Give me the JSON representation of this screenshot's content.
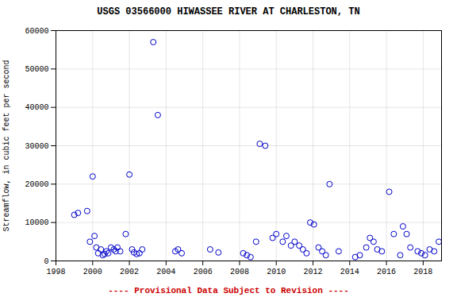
{
  "chart_data": {
    "type": "scatter",
    "title": "USGS 03566000 HIWASSEE RIVER AT CHARLESTON, TN",
    "ylabel": "Streamflow, in cubic feet per second",
    "xlabel": "---- Provisional Data Subject to Revision ----",
    "xlim": [
      1998,
      2019
    ],
    "ylim": [
      0,
      60000
    ],
    "xticks": [
      1998,
      2000,
      2002,
      2004,
      2006,
      2008,
      2010,
      2012,
      2014,
      2016,
      2018
    ],
    "yticks": [
      0,
      10000,
      20000,
      30000,
      40000,
      50000,
      60000
    ],
    "grid": true,
    "color": "#0000CC",
    "marker": "open",
    "x": [
      1999.0,
      1999.2,
      1999.7,
      1999.85,
      2000.0,
      2000.1,
      2000.2,
      2000.3,
      2000.45,
      2000.55,
      2000.65,
      2000.75,
      2000.85,
      2001.0,
      2001.15,
      2001.25,
      2001.35,
      2001.5,
      2001.8,
      2002.0,
      2002.15,
      2002.25,
      2002.4,
      2002.55,
      2002.7,
      2003.3,
      2003.55,
      2004.5,
      2004.65,
      2004.85,
      2006.4,
      2006.85,
      2008.2,
      2008.4,
      2008.6,
      2008.9,
      2009.1,
      2009.4,
      2009.8,
      2010.0,
      2010.35,
      2010.55,
      2010.8,
      2011.0,
      2011.25,
      2011.45,
      2011.65,
      2011.85,
      2012.05,
      2012.3,
      2012.5,
      2012.7,
      2012.9,
      2013.4,
      2014.3,
      2014.55,
      2014.9,
      2015.1,
      2015.3,
      2015.5,
      2015.75,
      2016.15,
      2016.4,
      2016.75,
      2016.9,
      2017.1,
      2017.3,
      2017.7,
      2017.9,
      2018.1,
      2018.35,
      2018.6,
      2018.85
    ],
    "values": [
      12000,
      12500,
      13000,
      5000,
      22000,
      6500,
      3500,
      2000,
      3000,
      1500,
      1800,
      2500,
      2000,
      3500,
      3000,
      2500,
      3500,
      2500,
      7000,
      22500,
      3000,
      2200,
      1800,
      2000,
      3000,
      57000,
      38000,
      2500,
      3000,
      2000,
      3000,
      2200,
      2000,
      1500,
      1000,
      5000,
      30500,
      30000,
      6000,
      7000,
      5000,
      6500,
      4000,
      5000,
      4000,
      3000,
      2000,
      10000,
      9500,
      3500,
      2500,
      1500,
      20000,
      2500,
      1000,
      1500,
      3500,
      6000,
      5000,
      3000,
      2500,
      18000,
      7000,
      1500,
      9000,
      7000,
      3500,
      2500,
      2000,
      1500,
      3000,
      2500,
      5000
    ]
  }
}
